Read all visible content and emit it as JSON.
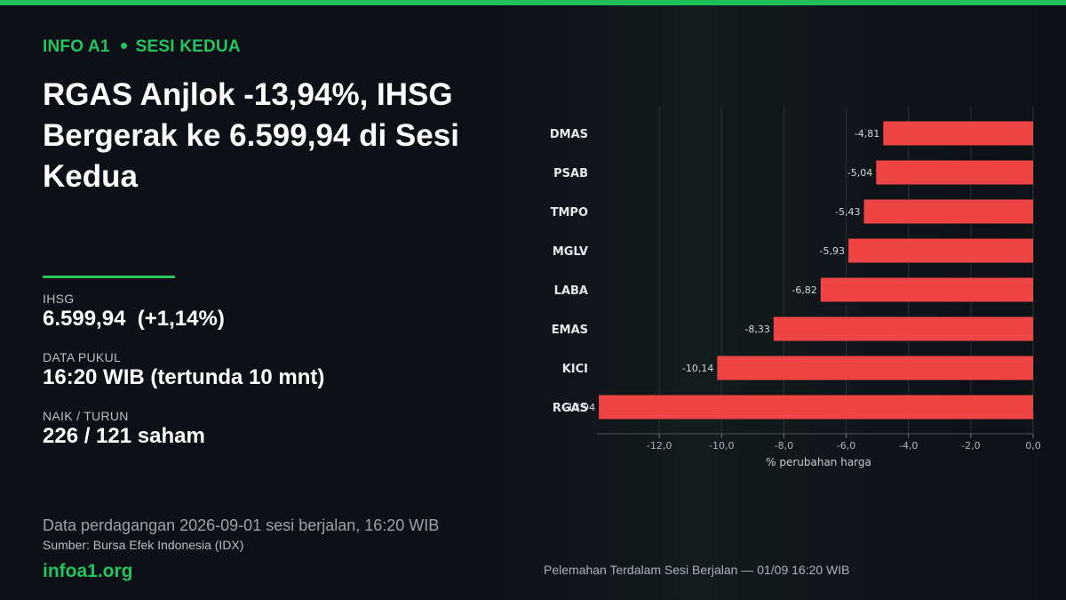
{
  "kicker": {
    "brand": "INFO A1",
    "section": "SESI KEDUA"
  },
  "headline": "RGAS Anjlok -13,94%, IHSG Bergerak ke 6.599,94 di Sesi Kedua",
  "stats": [
    {
      "label": "IHSG",
      "value": "6.599,94  (+1,14%)"
    },
    {
      "label": "DATA PUKUL",
      "value": "16:20 WIB (tertunda 10 mnt)"
    },
    {
      "label": "NAIK / TURUN",
      "value": "226 / 121 saham"
    }
  ],
  "footer": {
    "note": "Data perdagangan 2026-09-01 sesi berjalan, 16:20 WIB",
    "source": "Sumber: Bursa Efek Indonesia (IDX)",
    "site": "infoa1.org",
    "chart_caption": "Pelemahan Terdalam Sesi Berjalan — 01/09 16:20 WIB"
  },
  "colors": {
    "accent": "#22c55e",
    "bar": "#ef4444",
    "background": "#0d1117"
  },
  "chart_data": {
    "type": "bar",
    "orientation": "horizontal",
    "categories": [
      "DMAS",
      "PSAB",
      "TMPO",
      "MGLV",
      "LABA",
      "EMAS",
      "KICI",
      "RGAS"
    ],
    "values": [
      -4.81,
      -5.04,
      -5.43,
      -5.93,
      -6.82,
      -8.33,
      -10.14,
      -13.94
    ],
    "value_labels": [
      "-4,81",
      "-5,04",
      "-5,43",
      "-5,93",
      "-6,82",
      "-8,33",
      "-10,14",
      "-13,94"
    ],
    "xlabel": "% perubahan harga",
    "xlim": [
      -14.0,
      0.0
    ],
    "xticks": [
      -12,
      -10,
      -8,
      -6,
      -4,
      -2,
      0
    ],
    "xtick_labels": [
      "-12,0",
      "-10,0",
      "-8,0",
      "-6,0",
      "-4,0",
      "-2,0",
      "0,0"
    ],
    "grid": true
  }
}
